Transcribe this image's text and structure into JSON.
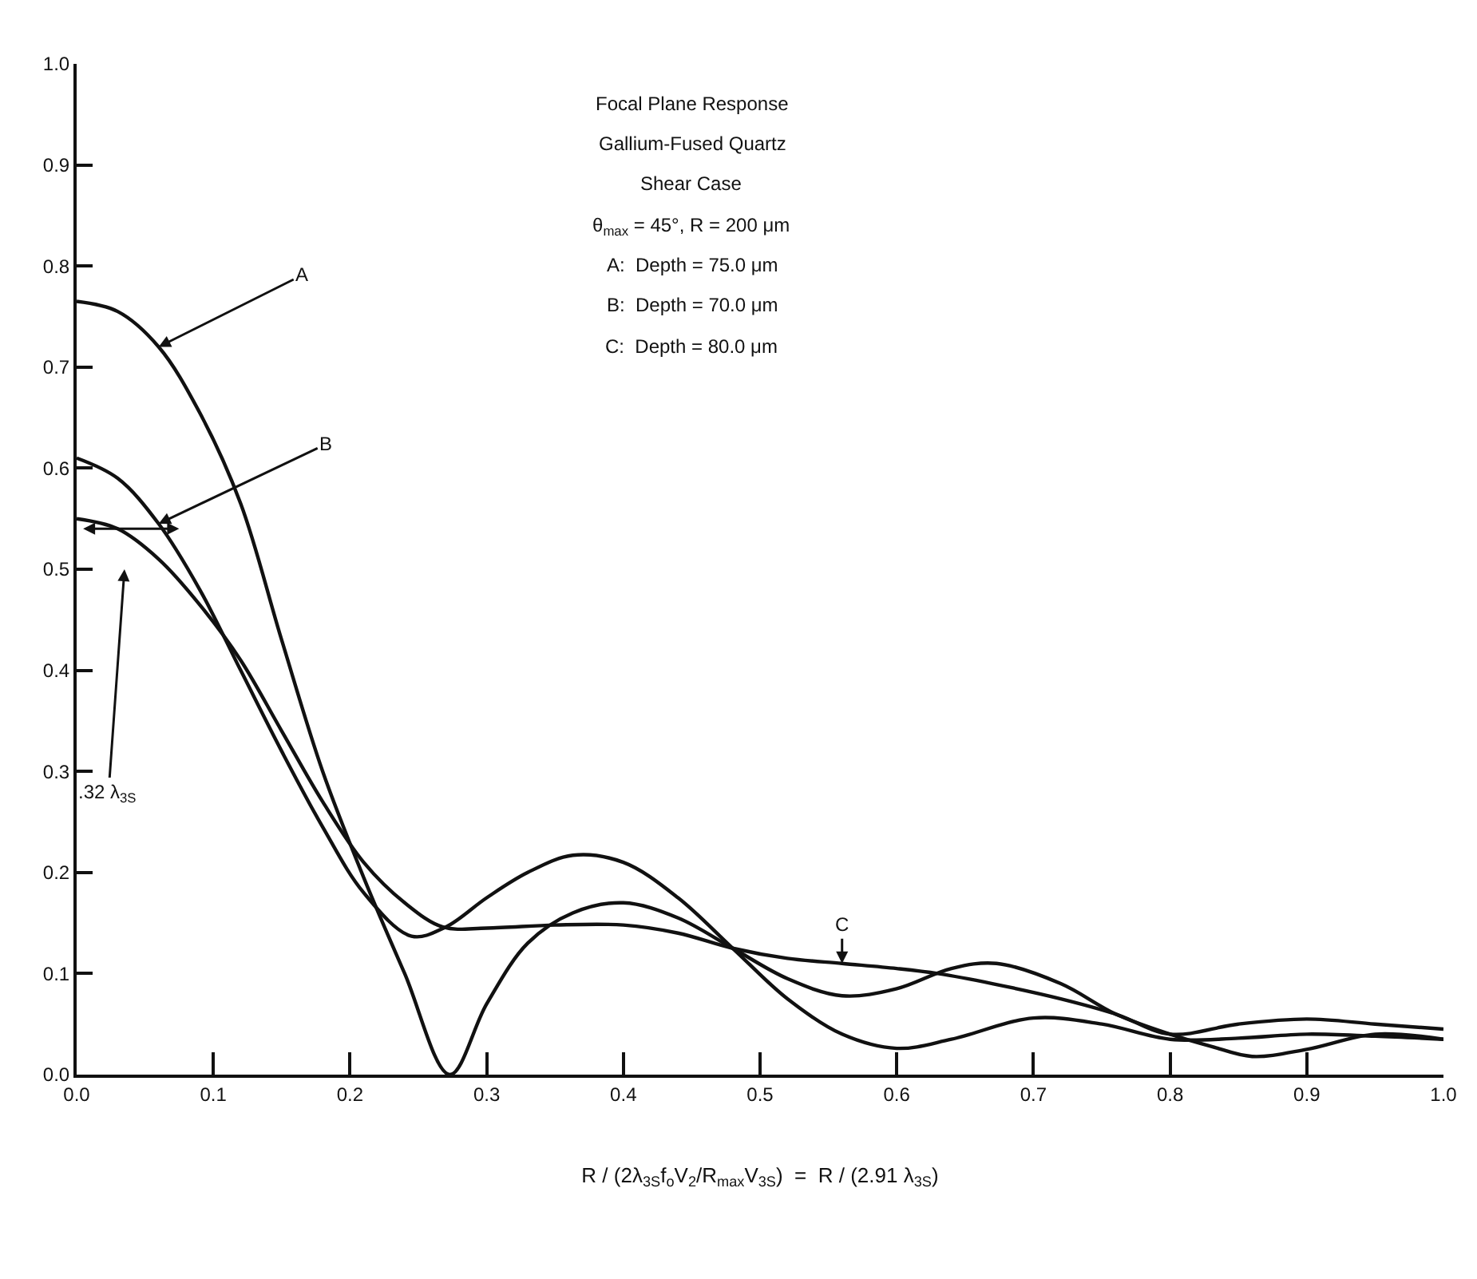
{
  "chart_data": {
    "type": "line",
    "title": "Focal Plane Response",
    "subtitle": "Gallium-Fused Quartz",
    "xlabel": "R / (2λ$_{3S}$f$_{o}$V$_{2}$/R$_{max}$V$_{3S}$)  =  R / (2.91 λ$_{3S}$)",
    "xlim": [
      0,
      1.0
    ],
    "xticks": [
      {
        "value": 0,
        "label": "0.0"
      },
      0.1,
      0.2,
      0.3,
      0.4,
      0.5,
      0.6,
      0.7,
      0.8,
      0.9,
      {
        "value": 1.0,
        "label": "1.0"
      }
    ],
    "ylim": [
      0,
      1.0
    ],
    "yticks": [
      {
        "value": 0,
        "label": "0.0"
      },
      0.1,
      0.2,
      0.3,
      0.4,
      0.5,
      0.6,
      0.7,
      0.8,
      0.9,
      {
        "value": 1.0,
        "label": "1.0"
      }
    ],
    "marker": "none",
    "line_style": "solid",
    "series": [
      {
        "name": "A",
        "color": "#111111",
        "x": [
          0,
          0.03,
          0.06,
          0.09,
          0.12,
          0.15,
          0.18,
          0.21,
          0.24,
          0.273,
          0.3,
          0.33,
          0.363,
          0.4,
          0.44,
          0.48,
          0.52,
          0.56,
          0.6,
          0.64,
          0.673,
          0.72,
          0.76,
          0.8,
          0.83,
          0.86,
          0.9,
          0.95,
          1.0
        ],
        "values": [
          0.765,
          0.755,
          0.72,
          0.655,
          0.565,
          0.43,
          0.3,
          0.195,
          0.1,
          0.0,
          0.07,
          0.13,
          0.16,
          0.17,
          0.155,
          0.125,
          0.095,
          0.078,
          0.085,
          0.105,
          0.11,
          0.09,
          0.06,
          0.04,
          0.028,
          0.018,
          0.025,
          0.04,
          0.035
        ]
      },
      {
        "name": "B",
        "color": "#111111",
        "x": [
          0,
          0.03,
          0.06,
          0.09,
          0.12,
          0.15,
          0.18,
          0.21,
          0.245,
          0.27,
          0.3,
          0.33,
          0.363,
          0.4,
          0.44,
          0.48,
          0.52,
          0.56,
          0.6,
          0.64,
          0.7,
          0.75,
          0.8,
          0.85,
          0.9,
          0.95,
          1.0
        ],
        "values": [
          0.61,
          0.59,
          0.545,
          0.48,
          0.4,
          0.32,
          0.245,
          0.18,
          0.137,
          0.146,
          0.175,
          0.2,
          0.217,
          0.21,
          0.175,
          0.125,
          0.075,
          0.04,
          0.026,
          0.035,
          0.056,
          0.05,
          0.035,
          0.036,
          0.04,
          0.038,
          0.035
        ]
      },
      {
        "name": "C",
        "color": "#111111",
        "x": [
          0,
          0.03,
          0.06,
          0.09,
          0.12,
          0.15,
          0.18,
          0.21,
          0.24,
          0.268,
          0.3,
          0.35,
          0.4,
          0.44,
          0.48,
          0.52,
          0.56,
          0.6,
          0.63,
          0.67,
          0.72,
          0.76,
          0.8,
          0.85,
          0.9,
          0.95,
          1.0
        ],
        "values": [
          0.55,
          0.54,
          0.51,
          0.465,
          0.41,
          0.34,
          0.27,
          0.21,
          0.17,
          0.146,
          0.145,
          0.148,
          0.148,
          0.14,
          0.125,
          0.115,
          0.11,
          0.105,
          0.1,
          0.09,
          0.075,
          0.06,
          0.04,
          0.05,
          0.055,
          0.05,
          0.045
        ]
      }
    ],
    "annotations": [
      "Shear Case",
      "θ$_{max}$ = 45°, R = 200 μm",
      "A:  Depth = 75.0 μm",
      "B:  Depth = 70.0 μm",
      "C:  Depth = 80.0 μm",
      ".32 λ$_{3S}$"
    ]
  }
}
